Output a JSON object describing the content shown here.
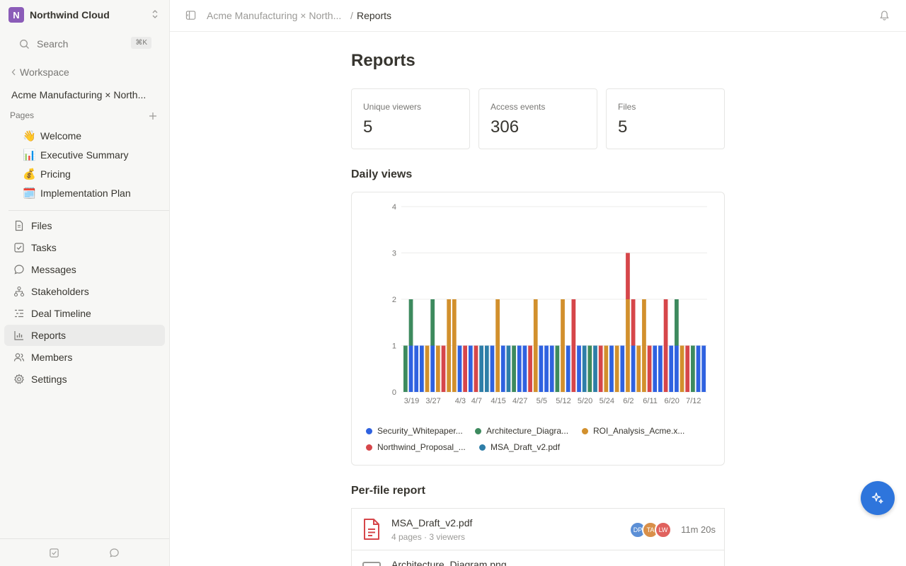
{
  "workspace": {
    "initial": "N",
    "name": "Northwind Cloud"
  },
  "search": {
    "label": "Search",
    "shortcut": "⌘K"
  },
  "sidebar": {
    "back_label": "Workspace",
    "project": "Acme Manufacturing × North...",
    "pages_heading": "Pages",
    "pages": [
      {
        "emoji": "👋",
        "label": "Welcome"
      },
      {
        "emoji": "📊",
        "label": "Executive Summary"
      },
      {
        "emoji": "💰",
        "label": "Pricing"
      },
      {
        "emoji": "🗓️",
        "label": "Implementation Plan"
      }
    ],
    "nav": [
      {
        "icon": "file-icon",
        "label": "Files"
      },
      {
        "icon": "checkbox-icon",
        "label": "Tasks"
      },
      {
        "icon": "chat-icon",
        "label": "Messages"
      },
      {
        "icon": "org-chart-icon",
        "label": "Stakeholders"
      },
      {
        "icon": "timeline-icon",
        "label": "Deal Timeline"
      },
      {
        "icon": "bar-chart-icon",
        "label": "Reports",
        "active": true
      },
      {
        "icon": "users-icon",
        "label": "Members"
      },
      {
        "icon": "gear-icon",
        "label": "Settings"
      }
    ]
  },
  "breadcrumb": {
    "parent": "Acme Manufacturing × North...",
    "separator": "/",
    "current": "Reports"
  },
  "main": {
    "title": "Reports",
    "stats": [
      {
        "label": "Unique viewers",
        "value": "5"
      },
      {
        "label": "Access events",
        "value": "306"
      },
      {
        "label": "Files",
        "value": "5"
      }
    ],
    "daily_views_heading": "Daily views",
    "per_file_heading": "Per-file report"
  },
  "chart_data": {
    "type": "bar",
    "stacked": true,
    "title": "",
    "xlabel": "",
    "ylabel": "",
    "ylim": [
      0,
      4
    ],
    "yticks": [
      0,
      1,
      2,
      3,
      4
    ],
    "xtick_labels": [
      "3/19",
      "3/27",
      "4/3",
      "4/7",
      "4/15",
      "4/27",
      "5/5",
      "5/12",
      "5/20",
      "5/24",
      "6/2",
      "6/11",
      "6/20",
      "7/12"
    ],
    "xtick_positions": [
      1,
      5,
      10,
      13,
      17,
      21,
      25,
      29,
      33,
      37,
      41,
      45,
      49,
      53
    ],
    "series_names": [
      "Security_Whitepaper...",
      "Architecture_Diagra...",
      "ROI_Analysis_Acme.x...",
      "Northwind_Proposal_...",
      "MSA_Draft_v2.pdf"
    ],
    "series_colors": [
      "#2f62e0",
      "#3d8a5e",
      "#d2902d",
      "#d6464a",
      "#2e7ea8"
    ],
    "bars": [
      [
        1
      ],
      [
        0,
        1
      ],
      [
        0
      ],
      [
        0
      ],
      [
        2
      ],
      [
        0,
        1
      ],
      [
        2
      ],
      [
        3
      ],
      [
        2,
        2
      ],
      [
        2,
        2
      ],
      [
        0
      ],
      [
        3
      ],
      [
        0
      ],
      [
        3
      ],
      [
        4
      ],
      [
        4
      ],
      [
        0
      ],
      [
        2,
        2
      ],
      [
        0
      ],
      [
        4
      ],
      [
        1
      ],
      [
        0
      ],
      [
        0
      ],
      [
        3
      ],
      [
        2,
        2
      ],
      [
        0
      ],
      [
        0
      ],
      [
        0
      ],
      [
        1
      ],
      [
        2,
        2
      ],
      [
        0
      ],
      [
        3,
        3
      ],
      [
        0
      ],
      [
        4
      ],
      [
        1
      ],
      [
        4
      ],
      [
        3
      ],
      [
        2
      ],
      [
        0
      ],
      [
        2
      ],
      [
        0
      ],
      [
        2,
        2,
        3
      ],
      [
        0,
        3
      ],
      [
        2
      ],
      [
        2,
        2
      ],
      [
        3
      ],
      [
        0
      ],
      [
        0
      ],
      [
        3,
        3
      ],
      [
        0
      ],
      [
        0,
        1
      ],
      [
        2
      ],
      [
        3
      ],
      [
        1
      ],
      [
        0
      ],
      [
        0
      ]
    ],
    "legend": [
      "Security_Whitepaper...",
      "Architecture_Diagra...",
      "ROI_Analysis_Acme.x...",
      "Northwind_Proposal_...",
      "MSA_Draft_v2.pdf"
    ]
  },
  "files": [
    {
      "name": "MSA_Draft_v2.pdf",
      "meta": "4 pages · 3 viewers",
      "viewers": [
        {
          "initials": "DP",
          "color": "#5b8fd6"
        },
        {
          "initials": "TA",
          "color": "#d9904a"
        },
        {
          "initials": "LW",
          "color": "#e0625e"
        }
      ],
      "time": "11m 20s"
    },
    {
      "name": "Architecture_Diagram.png"
    }
  ]
}
